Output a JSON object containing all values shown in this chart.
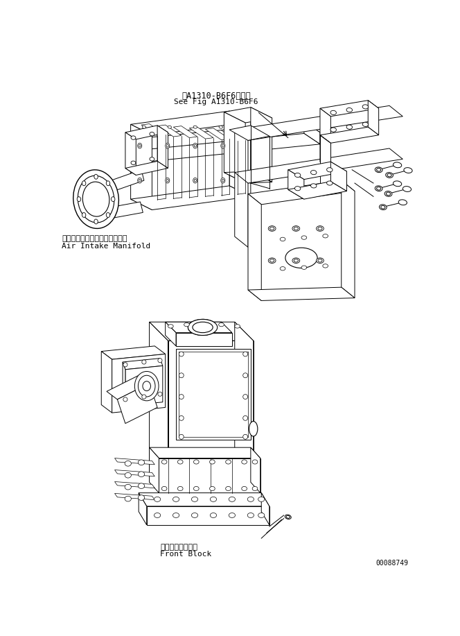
{
  "background_color": "#ffffff",
  "fig_width": 6.64,
  "fig_height": 9.17,
  "dpi": 100,
  "label_top_japanese": "第A1310-B6F6図参照",
  "label_top_english": "See Fig A1310-B6F6",
  "label_left_japanese": "エアーインテークマニホールド",
  "label_left_english": "Air Intake Manifold",
  "label_bottom_japanese": "フロントブロック",
  "label_bottom_english": "Front Block",
  "part_number": "00088749",
  "text_color": "#000000",
  "line_color": "#000000",
  "font_size_label": 8,
  "font_size_partnumber": 7
}
